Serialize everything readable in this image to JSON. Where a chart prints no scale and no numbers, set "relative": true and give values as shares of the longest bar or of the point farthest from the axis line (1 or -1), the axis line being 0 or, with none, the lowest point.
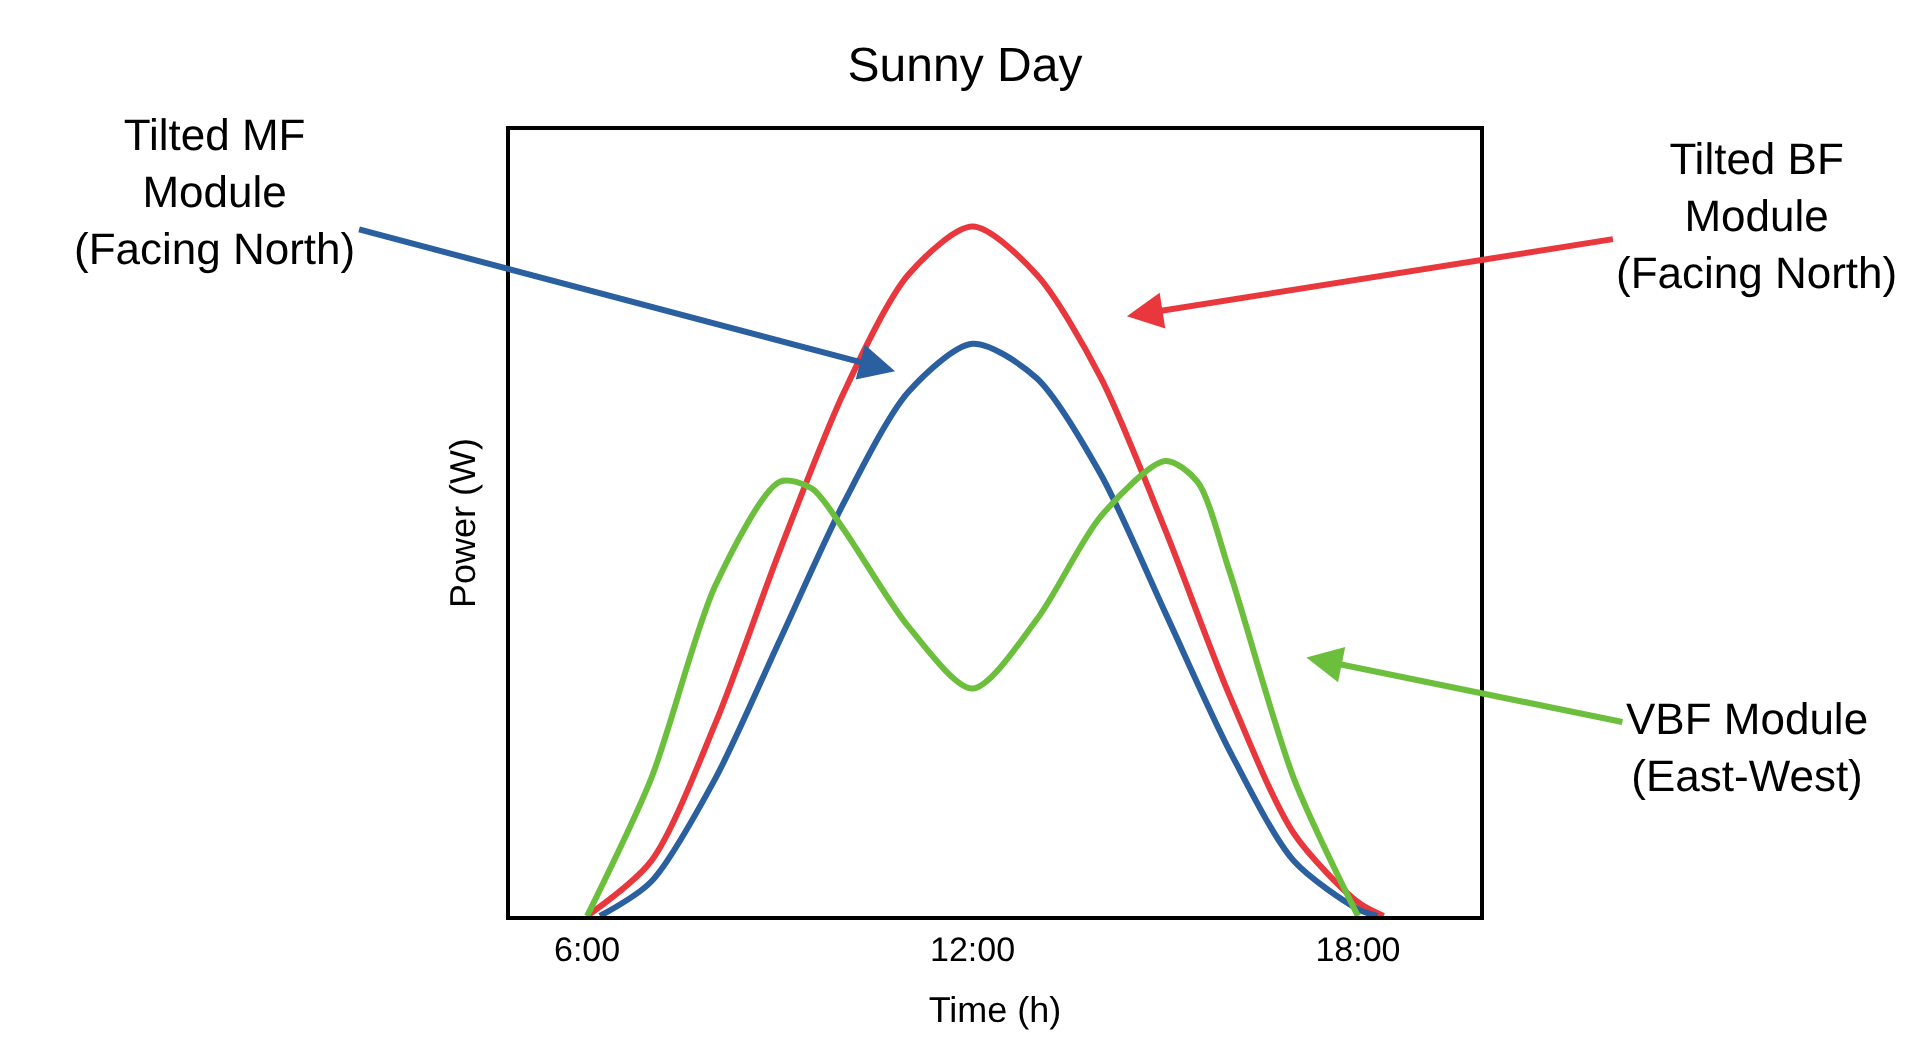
{
  "chart_data": {
    "type": "line",
    "title": "Sunny Day",
    "xlabel": "Time (h)",
    "ylabel": "Power (W)",
    "relative": true,
    "marker": "none",
    "line_style": "solid",
    "xlim": [
      4.8,
      19.9
    ],
    "xticks": [
      {
        "value": 6,
        "label": "6:00"
      },
      {
        "value": 12,
        "label": "12:00"
      },
      {
        "value": 18,
        "label": "18:00"
      }
    ],
    "series": [
      {
        "color": "#e8383d",
        "x": [
          6.0,
          7,
          8,
          9,
          10,
          11,
          12,
          13,
          14,
          15,
          16,
          17,
          18,
          18.4
        ],
        "values": [
          0,
          0.08,
          0.28,
          0.53,
          0.76,
          0.93,
          1.0,
          0.93,
          0.78,
          0.56,
          0.32,
          0.12,
          0.02,
          0
        ]
      },
      {
        "color": "#2a5fa0",
        "x": [
          6.2,
          7,
          8,
          9,
          10,
          11,
          12,
          13,
          14,
          15,
          16,
          17,
          18,
          18.3
        ],
        "values": [
          0,
          0.05,
          0.2,
          0.4,
          0.6,
          0.76,
          0.83,
          0.78,
          0.64,
          0.44,
          0.24,
          0.08,
          0.01,
          0
        ]
      },
      {
        "color": "#6cbf3c",
        "x": [
          6.0,
          7,
          8,
          9,
          9.5,
          10,
          11,
          12,
          13,
          14,
          15,
          15.5,
          16,
          17,
          18
        ],
        "values": [
          0,
          0.2,
          0.48,
          0.63,
          0.62,
          0.56,
          0.42,
          0.33,
          0.43,
          0.58,
          0.66,
          0.63,
          0.5,
          0.2,
          0
        ]
      }
    ],
    "annotations": [
      "Tilted BF\nModule\n(Facing North)",
      "Tilted MF\nModule\n(Facing North)",
      "VBF Module\n(East-West)"
    ]
  }
}
